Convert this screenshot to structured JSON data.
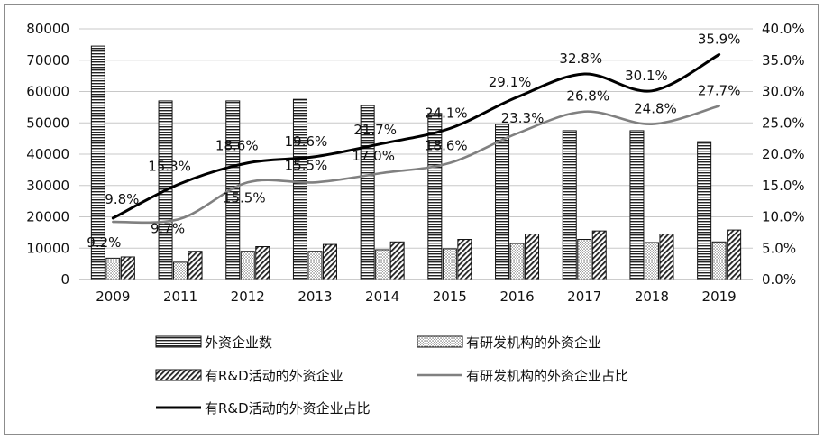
{
  "chart_data": {
    "type": "bar",
    "categories": [
      "2009",
      "2011",
      "2012",
      "2013",
      "2014",
      "2015",
      "2016",
      "2017",
      "2018",
      "2019"
    ],
    "series": [
      {
        "name": "外资企业数",
        "kind": "bar",
        "axis": "left",
        "pattern": "horizontal-stripes",
        "values": [
          74500,
          57000,
          57000,
          57500,
          55500,
          53000,
          49500,
          47500,
          47500,
          44000
        ]
      },
      {
        "name": "有研发机构的外资企业",
        "kind": "bar",
        "axis": "left",
        "pattern": "dots",
        "values": [
          6800,
          5500,
          9000,
          9000,
          9500,
          9800,
          11500,
          12800,
          11800,
          12000
        ]
      },
      {
        "name": "有R&D活动的外资企业",
        "kind": "bar",
        "axis": "left",
        "pattern": "diagonal-hatch",
        "values": [
          7200,
          9000,
          10500,
          11200,
          12000,
          12800,
          14500,
          15500,
          14500,
          15800
        ]
      },
      {
        "name": "有研发机构的外资企业占比",
        "kind": "line",
        "axis": "right",
        "color": "#808080",
        "values": [
          9.2,
          9.7,
          15.5,
          15.5,
          17.0,
          18.6,
          23.3,
          26.8,
          24.8,
          27.7
        ],
        "labels": [
          "9.2%",
          "9.7%",
          "15.5%",
          "15.5%",
          "17.0%",
          "18.6%",
          "23.3%",
          "26.8%",
          "24.8%",
          "27.7%"
        ]
      },
      {
        "name": "有R&D活动的外资企业占比",
        "kind": "line",
        "axis": "right",
        "color": "#000000",
        "values": [
          9.8,
          15.3,
          18.6,
          19.6,
          21.7,
          24.1,
          29.1,
          32.8,
          30.1,
          35.9
        ],
        "labels": [
          "9.8%",
          "15.3%",
          "18.6%",
          "19.6%",
          "21.7%",
          "24.1%",
          "29.1%",
          "32.8%",
          "30.1%",
          "35.9%"
        ]
      }
    ],
    "y_left": {
      "min": 0,
      "max": 80000,
      "step": 10000,
      "ticks": [
        "0",
        "10000",
        "20000",
        "30000",
        "40000",
        "50000",
        "60000",
        "70000",
        "80000"
      ]
    },
    "y_right": {
      "min": 0,
      "max": 40,
      "step": 5,
      "ticks": [
        "0.0%",
        "5.0%",
        "10.0%",
        "15.0%",
        "20.0%",
        "25.0%",
        "30.0%",
        "35.0%",
        "40.0%"
      ]
    },
    "grid": true,
    "legend_position": "bottom",
    "title": "",
    "xlabel": "",
    "ylabel": ""
  }
}
